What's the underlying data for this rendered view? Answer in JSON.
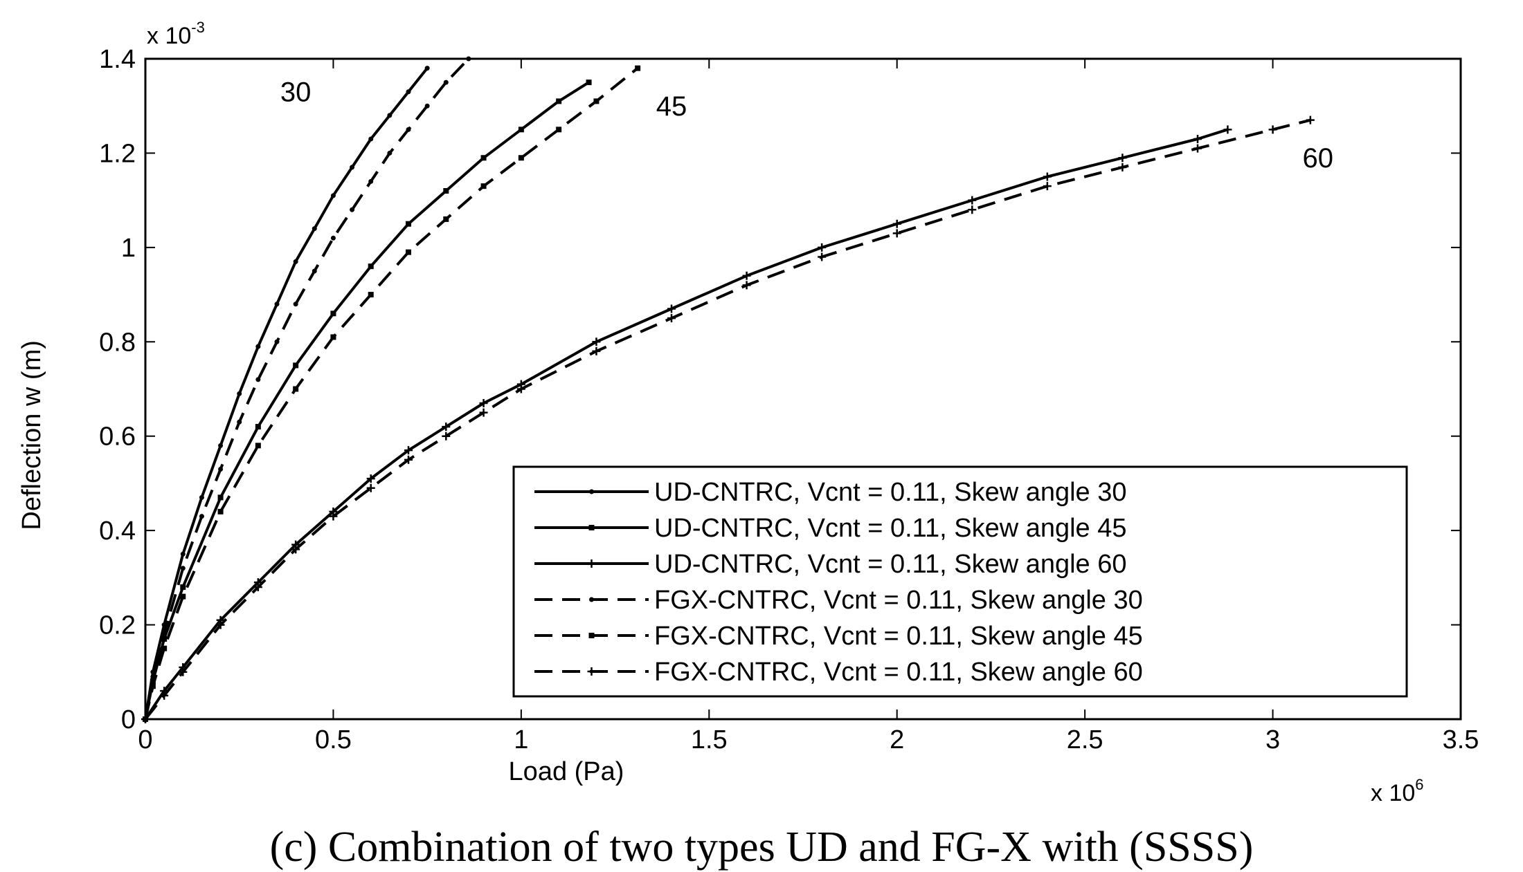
{
  "chart_data": {
    "type": "line",
    "title": "",
    "xlabel": "Load (Pa)",
    "ylabel": "Deflection w (m)",
    "x_exponent_label": "x 10",
    "x_exponent_power": "6",
    "y_exponent_label": "x 10",
    "y_exponent_power": "-3",
    "xlim": [
      0,
      3.5
    ],
    "ylim": [
      0,
      1.4
    ],
    "xticks": [
      "0",
      "0.5",
      "1",
      "1.5",
      "2",
      "2.5",
      "3",
      "3.5"
    ],
    "yticks": [
      "0",
      "0.2",
      "0.4",
      "0.6",
      "0.8",
      "1",
      "1.2",
      "1.4"
    ],
    "x_units_note": "x values in units of 10^6 Pa",
    "y_units_note": "y values in units of 10^-3 m",
    "grid": false,
    "legend_position": "lower-right",
    "series": [
      {
        "name": "UD-CNTRC, Vcnt = 0.11, Skew angle 30",
        "style": "solid",
        "marker": "dot",
        "x": [
          0,
          0.02,
          0.05,
          0.1,
          0.15,
          0.2,
          0.25,
          0.3,
          0.35,
          0.4,
          0.45,
          0.5,
          0.55,
          0.6,
          0.65,
          0.7,
          0.75
        ],
        "y": [
          0,
          0.1,
          0.2,
          0.35,
          0.47,
          0.58,
          0.69,
          0.79,
          0.88,
          0.97,
          1.04,
          1.11,
          1.17,
          1.23,
          1.28,
          1.33,
          1.38
        ]
      },
      {
        "name": "UD-CNTRC, Vcnt = 0.11, Skew angle 45",
        "style": "solid",
        "marker": "square",
        "x": [
          0,
          0.02,
          0.05,
          0.1,
          0.2,
          0.3,
          0.4,
          0.5,
          0.6,
          0.7,
          0.8,
          0.9,
          1.0,
          1.1,
          1.18
        ],
        "y": [
          0,
          0.08,
          0.17,
          0.28,
          0.47,
          0.62,
          0.75,
          0.86,
          0.96,
          1.05,
          1.12,
          1.19,
          1.25,
          1.31,
          1.35
        ]
      },
      {
        "name": "UD-CNTRC, Vcnt = 0.11, Skew angle 60",
        "style": "solid",
        "marker": "plus",
        "x": [
          0,
          0.05,
          0.1,
          0.2,
          0.3,
          0.4,
          0.5,
          0.6,
          0.7,
          0.8,
          0.9,
          1.0,
          1.2,
          1.4,
          1.6,
          1.8,
          2.0,
          2.2,
          2.4,
          2.6,
          2.8,
          2.88
        ],
        "y": [
          0,
          0.06,
          0.11,
          0.21,
          0.29,
          0.37,
          0.44,
          0.51,
          0.57,
          0.62,
          0.67,
          0.71,
          0.8,
          0.87,
          0.94,
          1.0,
          1.05,
          1.1,
          1.15,
          1.19,
          1.23,
          1.25
        ]
      },
      {
        "name": "FGX-CNTRC, Vcnt = 0.11, Skew angle 30",
        "style": "dashed",
        "marker": "dot",
        "x": [
          0,
          0.02,
          0.05,
          0.1,
          0.15,
          0.2,
          0.25,
          0.3,
          0.35,
          0.4,
          0.45,
          0.5,
          0.55,
          0.6,
          0.65,
          0.7,
          0.75,
          0.8,
          0.86
        ],
        "y": [
          0,
          0.09,
          0.18,
          0.32,
          0.43,
          0.53,
          0.63,
          0.72,
          0.8,
          0.88,
          0.95,
          1.02,
          1.08,
          1.14,
          1.2,
          1.25,
          1.3,
          1.35,
          1.4
        ]
      },
      {
        "name": "FGX-CNTRC, Vcnt = 0.11, Skew angle 45",
        "style": "dashed",
        "marker": "square",
        "x": [
          0,
          0.02,
          0.05,
          0.1,
          0.2,
          0.3,
          0.4,
          0.5,
          0.6,
          0.7,
          0.8,
          0.9,
          1.0,
          1.1,
          1.2,
          1.31
        ],
        "y": [
          0,
          0.07,
          0.15,
          0.26,
          0.44,
          0.58,
          0.7,
          0.81,
          0.9,
          0.99,
          1.06,
          1.13,
          1.19,
          1.25,
          1.31,
          1.38
        ]
      },
      {
        "name": "FGX-CNTRC, Vcnt = 0.11, Skew angle 60",
        "style": "dashed",
        "marker": "plus",
        "x": [
          0,
          0.05,
          0.1,
          0.2,
          0.3,
          0.4,
          0.5,
          0.6,
          0.7,
          0.8,
          0.9,
          1.0,
          1.2,
          1.4,
          1.6,
          1.8,
          2.0,
          2.2,
          2.4,
          2.6,
          2.8,
          3.0,
          3.1
        ],
        "y": [
          0,
          0.05,
          0.1,
          0.2,
          0.28,
          0.36,
          0.43,
          0.49,
          0.55,
          0.6,
          0.65,
          0.7,
          0.78,
          0.85,
          0.92,
          0.98,
          1.03,
          1.08,
          1.13,
          1.17,
          1.21,
          1.25,
          1.27
        ]
      }
    ],
    "annotations": [
      {
        "text": "30",
        "x": 0.4,
        "y": 1.31
      },
      {
        "text": "45",
        "x": 1.4,
        "y": 1.28
      },
      {
        "text": "60",
        "x": 3.12,
        "y": 1.17
      }
    ]
  },
  "caption": "(c) Combination of two types UD and FG-X with (SSSS)"
}
